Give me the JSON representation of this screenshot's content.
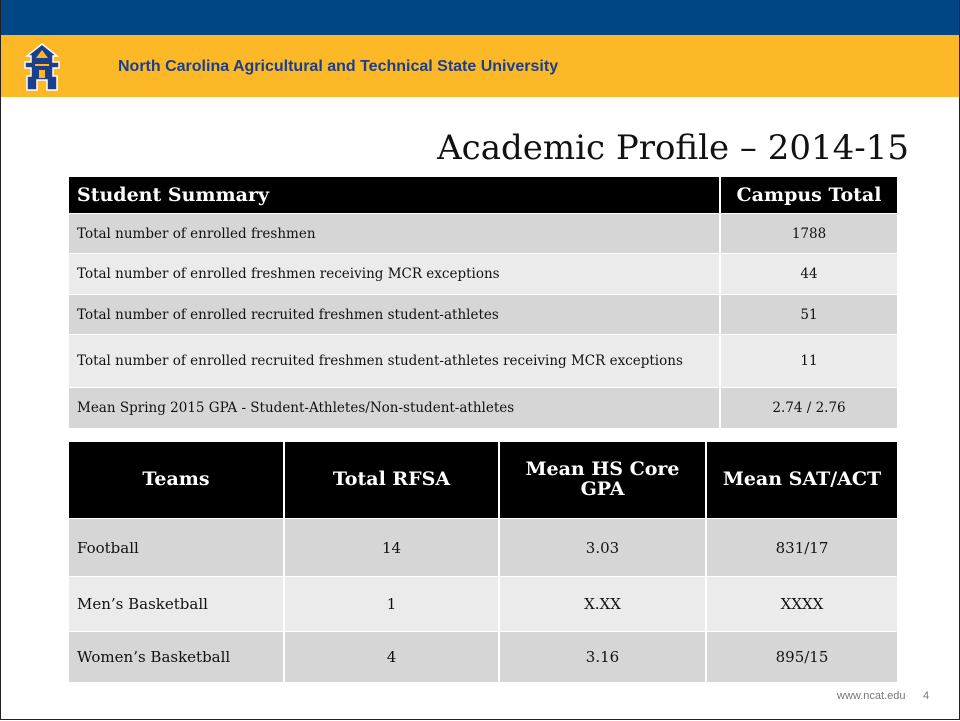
{
  "header": {
    "title": "North Carolina Agricultural and Technical State University"
  },
  "title": "Academic Profile – 2014-15",
  "summary": {
    "columns": [
      "Student Summary",
      "Campus Total"
    ],
    "rows": [
      [
        "Total number of enrolled freshmen",
        1788
      ],
      [
        "Total number of enrolled freshmen receiving MCR exceptions",
        44
      ],
      [
        "Total number of enrolled recruited freshmen student-athletes",
        51
      ],
      [
        "Total number of enrolled recruited freshmen student-athletes receiving MCR exceptions",
        11
      ],
      [
        "Mean Spring 2015 GPA  - Student-Athletes/Non-student-athletes",
        "2.74 / 2.76"
      ]
    ]
  },
  "teams": {
    "columns": [
      "Teams",
      "Total RFSA",
      "Mean HS Core GPA",
      "Mean SAT/ACT"
    ],
    "rows": [
      [
        "Football",
        14,
        3.03,
        "831/17"
      ],
      [
        "Men’s Basketball",
        1,
        "X.XX",
        "XXXX"
      ],
      [
        "Women’s Basketball",
        4,
        3.16,
        "895/15"
      ]
    ]
  },
  "footer": {
    "url": "www.ncat.edu",
    "page": 4
  }
}
